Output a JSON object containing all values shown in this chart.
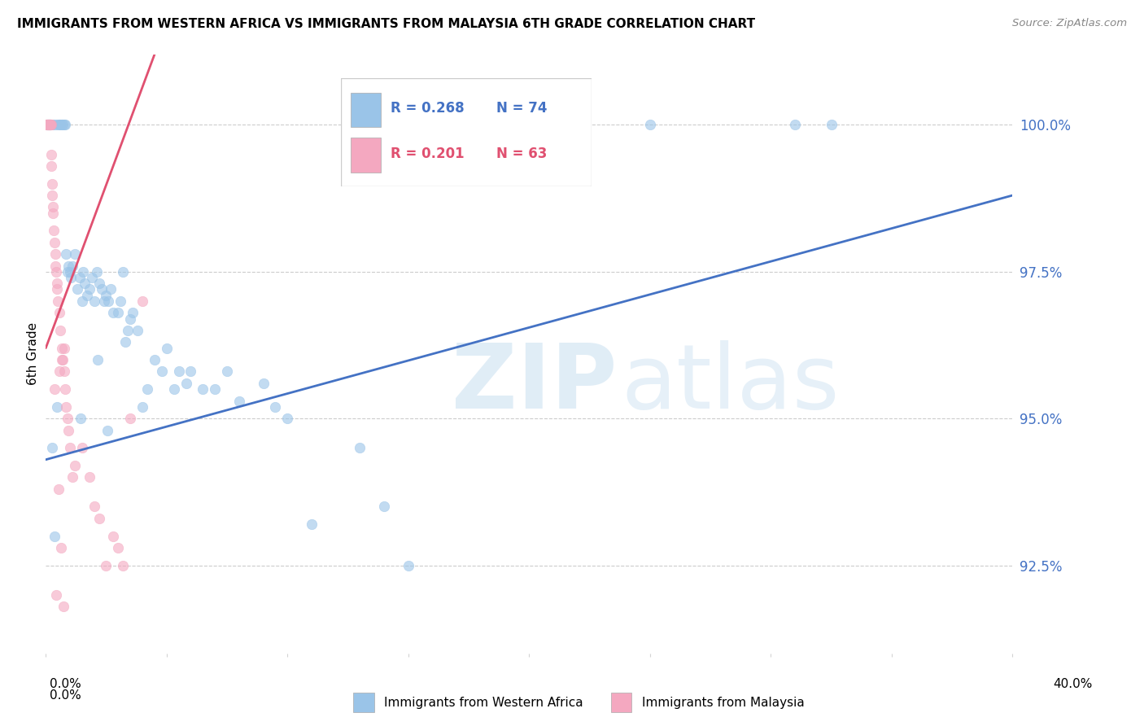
{
  "title": "IMMIGRANTS FROM WESTERN AFRICA VS IMMIGRANTS FROM MALAYSIA 6TH GRADE CORRELATION CHART",
  "source": "Source: ZipAtlas.com",
  "ylabel": "6th Grade",
  "yticks": [
    92.5,
    95.0,
    97.5,
    100.0
  ],
  "ytick_labels": [
    "92.5%",
    "95.0%",
    "97.5%",
    "100.0%"
  ],
  "xlim": [
    0.0,
    40.0
  ],
  "ylim": [
    91.0,
    101.2
  ],
  "legend_blue_R": "R = 0.268",
  "legend_blue_N": "N = 74",
  "legend_pink_R": "R = 0.201",
  "legend_pink_N": "N = 63",
  "blue_color": "#9ac4e8",
  "pink_color": "#f4a8c0",
  "blue_line_color": "#4472c4",
  "pink_line_color": "#e05070",
  "blue_scatter_x": [
    0.1,
    0.15,
    0.18,
    0.3,
    0.4,
    0.5,
    0.55,
    0.6,
    0.65,
    0.7,
    0.75,
    0.8,
    0.85,
    0.9,
    0.95,
    1.0,
    1.05,
    1.1,
    1.2,
    1.3,
    1.4,
    1.5,
    1.55,
    1.6,
    1.7,
    1.8,
    1.9,
    2.0,
    2.1,
    2.2,
    2.3,
    2.4,
    2.5,
    2.6,
    2.7,
    2.8,
    3.0,
    3.1,
    3.2,
    3.4,
    3.5,
    3.6,
    3.8,
    4.0,
    4.2,
    4.5,
    4.8,
    5.0,
    5.3,
    5.5,
    5.8,
    6.0,
    6.5,
    7.0,
    7.5,
    8.0,
    9.0,
    9.5,
    10.0,
    11.0,
    13.0,
    14.0,
    15.0,
    21.0,
    25.0,
    31.0,
    32.5,
    3.3,
    2.15,
    2.55,
    1.45,
    0.45,
    0.25,
    0.35
  ],
  "blue_scatter_y": [
    100.0,
    100.0,
    100.0,
    100.0,
    100.0,
    100.0,
    100.0,
    100.0,
    100.0,
    100.0,
    100.0,
    100.0,
    97.8,
    97.5,
    97.6,
    97.5,
    97.4,
    97.6,
    97.8,
    97.2,
    97.4,
    97.0,
    97.5,
    97.3,
    97.1,
    97.2,
    97.4,
    97.0,
    97.5,
    97.3,
    97.2,
    97.0,
    97.1,
    97.0,
    97.2,
    96.8,
    96.8,
    97.0,
    97.5,
    96.5,
    96.7,
    96.8,
    96.5,
    95.2,
    95.5,
    96.0,
    95.8,
    96.2,
    95.5,
    95.8,
    95.6,
    95.8,
    95.5,
    95.5,
    95.8,
    95.3,
    95.6,
    95.2,
    95.0,
    93.2,
    94.5,
    93.5,
    92.5,
    100.0,
    100.0,
    100.0,
    100.0,
    96.3,
    96.0,
    94.8,
    95.0,
    95.2,
    94.5,
    93.0
  ],
  "pink_scatter_x": [
    0.03,
    0.04,
    0.05,
    0.06,
    0.07,
    0.08,
    0.09,
    0.1,
    0.11,
    0.12,
    0.13,
    0.14,
    0.15,
    0.16,
    0.17,
    0.18,
    0.19,
    0.2,
    0.22,
    0.23,
    0.24,
    0.25,
    0.27,
    0.28,
    0.3,
    0.32,
    0.35,
    0.38,
    0.4,
    0.42,
    0.45,
    0.48,
    0.5,
    0.55,
    0.6,
    0.65,
    0.7,
    0.75,
    0.8,
    0.85,
    0.9,
    0.95,
    1.0,
    1.1,
    1.2,
    1.5,
    1.8,
    2.0,
    2.5,
    3.0,
    3.5,
    4.0,
    0.37,
    0.58,
    0.68,
    0.78,
    2.2,
    2.8,
    3.2,
    0.43,
    0.53,
    0.63,
    0.73
  ],
  "pink_scatter_y": [
    100.0,
    100.0,
    100.0,
    100.0,
    100.0,
    100.0,
    100.0,
    100.0,
    100.0,
    100.0,
    100.0,
    100.0,
    100.0,
    100.0,
    100.0,
    100.0,
    100.0,
    100.0,
    100.0,
    99.5,
    99.3,
    99.0,
    98.8,
    98.6,
    98.5,
    98.2,
    98.0,
    97.8,
    97.6,
    97.5,
    97.3,
    97.2,
    97.0,
    96.8,
    96.5,
    96.2,
    96.0,
    95.8,
    95.5,
    95.2,
    95.0,
    94.8,
    94.5,
    94.0,
    94.2,
    94.5,
    94.0,
    93.5,
    92.5,
    92.8,
    95.0,
    97.0,
    95.5,
    95.8,
    96.0,
    96.2,
    93.3,
    93.0,
    92.5,
    92.0,
    93.8,
    92.8,
    91.8
  ],
  "blue_line_x": [
    0.0,
    40.0
  ],
  "blue_line_y": [
    94.3,
    98.8
  ],
  "pink_line_x": [
    0.0,
    4.5
  ],
  "pink_line_y": [
    96.2,
    101.2
  ]
}
